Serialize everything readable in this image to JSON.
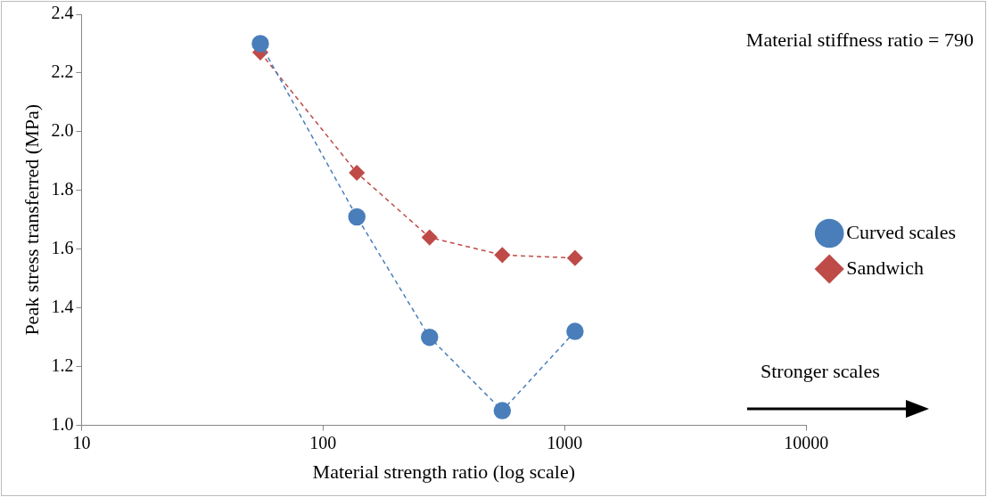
{
  "chart_data": {
    "type": "line",
    "xlabel": "Material strength ratio (log scale)",
    "ylabel": "Peak stress transferred (MPa)",
    "x": [
      55,
      138,
      276,
      552,
      1104
    ],
    "series": [
      {
        "name": "Curved scales",
        "color": "#4a7ebb",
        "marker": "circle",
        "values": [
          2.3,
          1.71,
          1.3,
          1.05,
          1.32
        ]
      },
      {
        "name": "Sandwich",
        "color": "#be4b48",
        "marker": "diamond",
        "values": [
          2.27,
          1.86,
          1.64,
          1.58,
          1.57
        ]
      }
    ],
    "log": "x",
    "xlim": [
      10,
      10000
    ],
    "xticks": [
      10,
      100,
      1000,
      10000
    ],
    "ylim": [
      1.0,
      2.4
    ],
    "yticks": [
      {
        "value": 1.0,
        "label": "1.0"
      },
      {
        "value": 1.2,
        "label": "1.2"
      },
      {
        "value": 1.4,
        "label": "1.4"
      },
      {
        "value": 1.6,
        "label": "1.6"
      },
      {
        "value": 1.8,
        "label": "1.8"
      },
      {
        "value": 2.0,
        "label": "2.0"
      },
      {
        "value": 2.2,
        "label": "2.2"
      },
      {
        "value": 2.4,
        "label": "2.4"
      }
    ],
    "grid": false,
    "legend": "right",
    "line_style": "dashed",
    "annotations": [
      "Material stiffness ratio = 790",
      "Stronger scales"
    ]
  }
}
